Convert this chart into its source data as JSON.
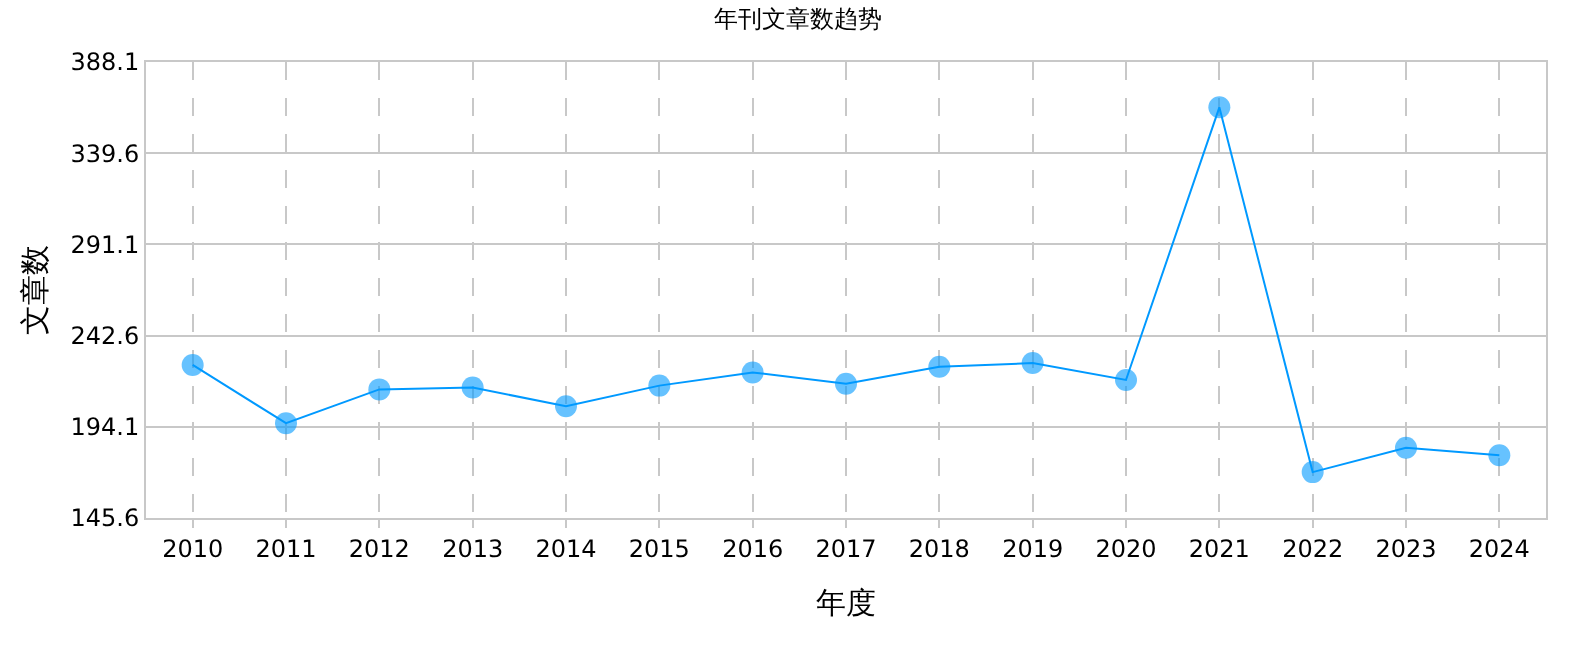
{
  "chart_data": {
    "type": "line",
    "title": "年刊文章数趋势",
    "xlabel": "年度",
    "ylabel": "文章数",
    "categories": [
      "2010",
      "2011",
      "2012",
      "2013",
      "2014",
      "2015",
      "2016",
      "2017",
      "2018",
      "2019",
      "2020",
      "2021",
      "2022",
      "2023",
      "2024"
    ],
    "series": [
      {
        "color": "#0099ff",
        "values": [
          227,
          196,
          214,
          215,
          205,
          216,
          223,
          217,
          226,
          228,
          219,
          364,
          170,
          183,
          179
        ]
      }
    ],
    "marker": "circle",
    "ylim": [
      145.6,
      388.1
    ],
    "yticks": [
      145.6,
      194.1,
      242.6,
      291.1,
      339.6,
      388.1
    ],
    "grid": true,
    "legend": false
  }
}
